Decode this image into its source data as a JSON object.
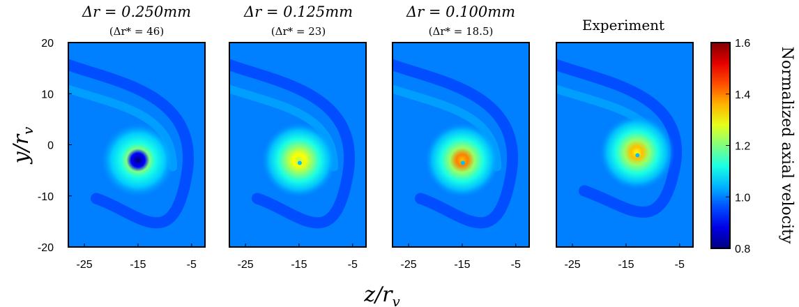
{
  "chart_data": {
    "type": "heatmap",
    "panels": [
      {
        "title": "Δr = 0.250mm",
        "subtitle": "(Δr* = 46)",
        "center": {
          "z": -15,
          "y": -3
        },
        "center_value": 0.8
      },
      {
        "title": "Δr = 0.125mm",
        "subtitle": "(Δr* = 23)",
        "center": {
          "z": -15,
          "y": -3
        },
        "center_value": 1.3
      },
      {
        "title": "Δr = 0.100mm",
        "subtitle": "(Δr* = 18.5)",
        "center": {
          "z": -15,
          "y": -3
        },
        "center_value": 1.4
      },
      {
        "title": "Experiment",
        "subtitle": "",
        "center": {
          "z": -13,
          "y": -1.5
        },
        "center_value": 1.35
      }
    ],
    "xlabel": "z/r",
    "xlabel_sub": "v",
    "ylabel": "y/r",
    "ylabel_sub": "v",
    "xticks": [
      "-25",
      "-15",
      "-5"
    ],
    "xtick_values": [
      -25,
      -15,
      -5
    ],
    "yticks": [
      "20",
      "10",
      "0",
      "-10",
      "-20"
    ],
    "ytick_values": [
      20,
      10,
      0,
      -10,
      -20
    ],
    "xlim": [
      -28,
      -2.5
    ],
    "ylim": [
      -20,
      20
    ],
    "colorbar": {
      "label": "Normalized axial velocity",
      "min": 0.8,
      "max": 1.6,
      "ticks": [
        "1.6",
        "1.4",
        "1.2",
        "1.0",
        "0.8"
      ],
      "tick_values": [
        1.6,
        1.4,
        1.2,
        1.0,
        0.8
      ],
      "colormap": "jet"
    },
    "background_value": 1.0
  }
}
